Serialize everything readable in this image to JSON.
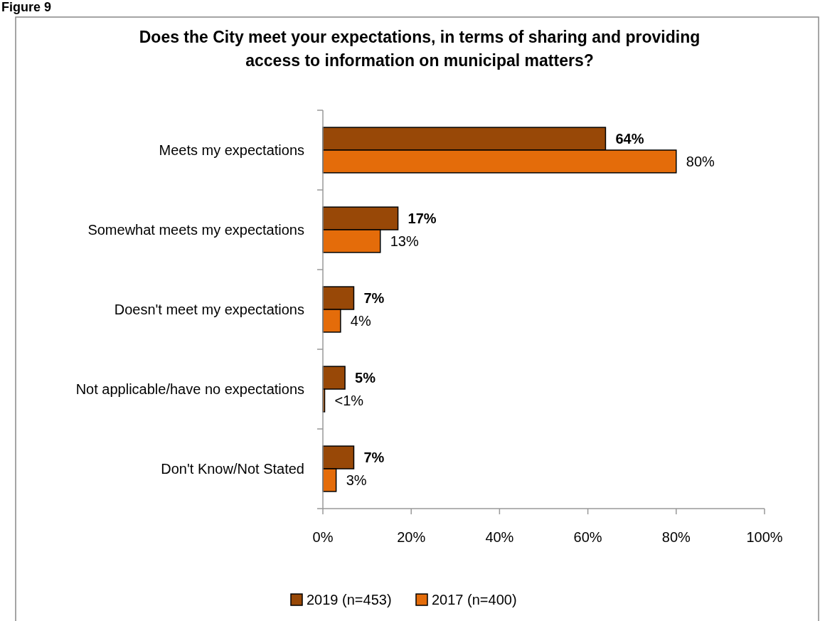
{
  "chart_data": {
    "type": "bar",
    "orientation": "horizontal",
    "title": "Does the City meet your expectations, in terms of sharing and providing access to information on municipal matters?",
    "annotations": [
      "Figure 9"
    ],
    "categories": [
      "Meets my expectations",
      "Somewhat meets my expectations",
      "Doesn't meet my expectations",
      "Not applicable/have no expectations",
      "Don't Know/Not Stated"
    ],
    "series": [
      {
        "name": "2019 (n=453)",
        "color": "#984807",
        "values": [
          64,
          17,
          7,
          5,
          7
        ],
        "value_labels": [
          "64%",
          "17%",
          "7%",
          "5%",
          "7%"
        ]
      },
      {
        "name": "2017 (n=400)",
        "color": "#e46c0a",
        "values": [
          80,
          13,
          4,
          0.4,
          3
        ],
        "value_labels": [
          "80%",
          "13%",
          "4%",
          "<1%",
          "3%"
        ]
      }
    ],
    "xlim": [
      0,
      100
    ],
    "xticks": [
      {
        "value": 0,
        "label": "0%"
      },
      {
        "value": 20,
        "label": "20%"
      },
      {
        "value": 40,
        "label": "40%"
      },
      {
        "value": 60,
        "label": "60%"
      },
      {
        "value": 80,
        "label": "80%"
      },
      {
        "value": 100,
        "label": "100%"
      }
    ],
    "grid": false,
    "legend": "bottom"
  }
}
